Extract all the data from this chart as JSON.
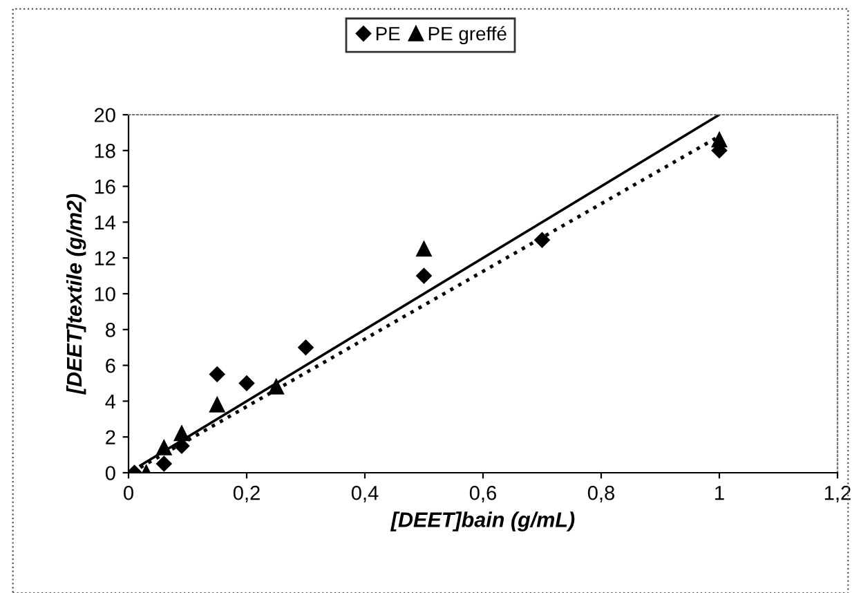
{
  "chart_data": {
    "type": "scatter",
    "xlabel": "[DEET]bain (g/mL)",
    "ylabel": "[DEET]textile (g/m2)",
    "xlim": [
      0,
      1.2
    ],
    "ylim": [
      0,
      20
    ],
    "xticks": [
      0,
      {
        "value": 0.2,
        "label": "0,2"
      },
      {
        "value": 0.4,
        "label": "0,4"
      },
      {
        "value": 0.6,
        "label": "0,6"
      },
      {
        "value": 0.8,
        "label": "0,8"
      },
      1,
      {
        "value": 1.2,
        "label": "1,2"
      }
    ],
    "yticks": [
      0,
      2,
      4,
      6,
      8,
      10,
      12,
      14,
      16,
      18,
      20
    ],
    "grid": false,
    "legend": "top",
    "series": [
      {
        "name": "PE",
        "color": "#000000",
        "marker": "diamond",
        "x": [
          0.01,
          0.06,
          0.09,
          0.15,
          0.2,
          0.3,
          0.5,
          0.7,
          1
        ],
        "values": [
          0,
          0.5,
          1.5,
          5.5,
          5,
          7,
          11,
          13,
          18
        ]
      },
      {
        "name": "PE greffé",
        "color": "#000000",
        "marker": "triangle",
        "x": [
          0.03,
          0.06,
          0.09,
          0.15,
          0.25,
          0.5,
          1
        ],
        "values": [
          0,
          1.4,
          2.2,
          3.8,
          4.8,
          12.5,
          18.6
        ]
      },
      {
        "type": "line",
        "color": "#000000",
        "line_style": "solid",
        "marker": "none",
        "x": [
          0.02,
          1
        ],
        "values": [
          0.4,
          20
        ]
      },
      {
        "type": "line",
        "color": "#000000",
        "line_style": "dotted",
        "marker": "none",
        "x": [
          0.02,
          1
        ],
        "values": [
          0.3,
          18.8
        ]
      }
    ]
  }
}
